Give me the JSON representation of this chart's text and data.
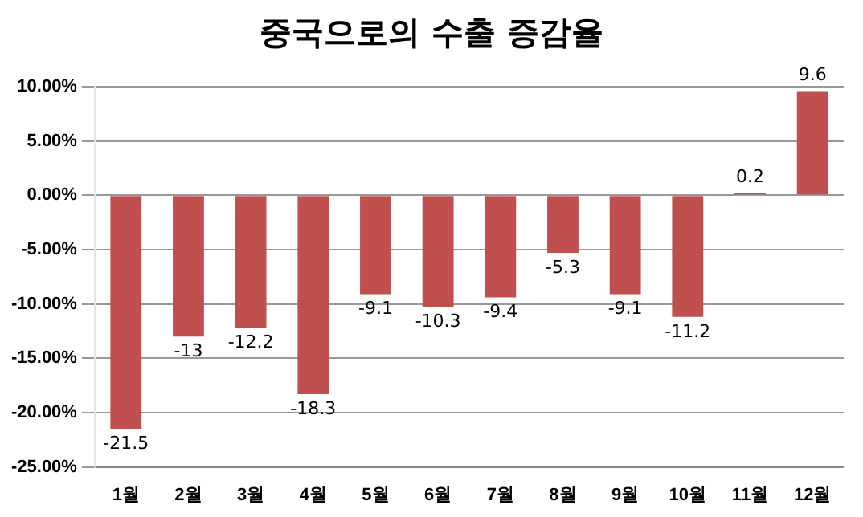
{
  "chart_data": {
    "type": "bar",
    "title": "중국으로의 수출 증감율",
    "categories": [
      "1월",
      "2월",
      "3월",
      "4월",
      "5월",
      "6월",
      "7월",
      "8월",
      "9월",
      "10월",
      "11월",
      "12월"
    ],
    "values": [
      -21.5,
      -13,
      -12.2,
      -18.3,
      -9.1,
      -10.3,
      -9.4,
      -5.3,
      -9.1,
      -11.2,
      0.2,
      9.6
    ],
    "color": "#c0504d",
    "ylim": [
      -25,
      10
    ],
    "yticks": [
      {
        "value": -25,
        "label": "-25.00%"
      },
      {
        "value": -20,
        "label": "-20.00%"
      },
      {
        "value": -15,
        "label": "-15.00%"
      },
      {
        "value": -10,
        "label": "-10.00%"
      },
      {
        "value": -5,
        "label": "-5.00%"
      },
      {
        "value": 0,
        "label": "0.00%"
      },
      {
        "value": 5,
        "label": "5.00%"
      },
      {
        "value": 10,
        "label": "10.00%"
      }
    ],
    "grid": "y",
    "data_labels": true
  }
}
